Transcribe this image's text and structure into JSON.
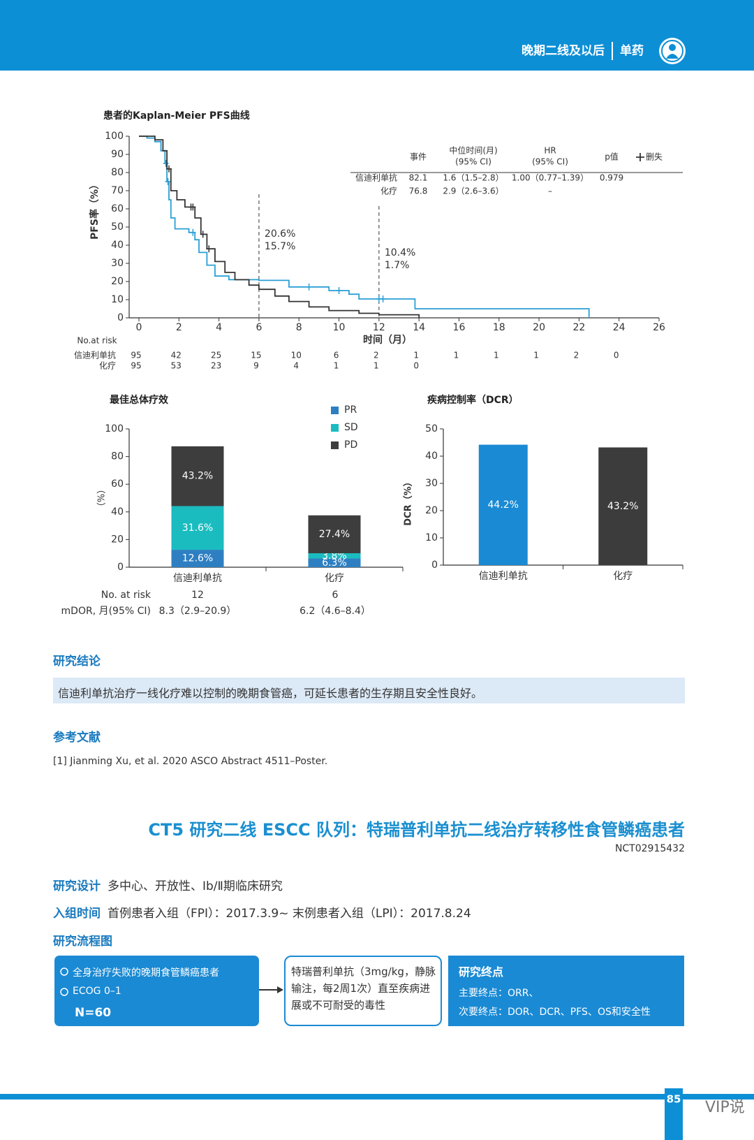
{
  "header": {
    "section": "晚期二线及以后",
    "subsection": "单药"
  },
  "km_chart": {
    "type": "line",
    "title": "患者的Kaplan-Meier PFS曲线",
    "y_label": "PFS率（%）",
    "x_label": "时间（月）",
    "xlim": [
      0,
      26
    ],
    "xticks": [
      0,
      2,
      4,
      6,
      8,
      10,
      12,
      14,
      16,
      18,
      20,
      22,
      24,
      26
    ],
    "ylim": [
      0,
      100
    ],
    "yticks": [
      0,
      10,
      20,
      30,
      40,
      50,
      60,
      70,
      80,
      90,
      100
    ],
    "series": [
      {
        "name": "信迪利单抗",
        "color": "#2a9fd6",
        "x": [
          0,
          0.4,
          0.4,
          0.8,
          0.8,
          1.1,
          1.1,
          1.3,
          1.3,
          1.4,
          1.4,
          1.5,
          1.5,
          1.6,
          1.6,
          1.8,
          1.8,
          2.5,
          2.5,
          2.8,
          2.8,
          3.0,
          3.0,
          3.4,
          3.4,
          3.8,
          3.8,
          4.5,
          4.5,
          6,
          6,
          7.5,
          7.5,
          9.5,
          9.5,
          10.5,
          10.5,
          11,
          11,
          13.8,
          13.8,
          22.5,
          22.5
        ],
        "values": [
          100,
          100,
          99,
          99,
          97,
          97,
          92,
          92,
          85,
          85,
          75,
          75,
          65,
          65,
          55,
          55,
          49,
          49,
          47,
          47,
          43,
          43,
          36,
          36,
          29,
          29,
          23,
          23,
          21,
          21,
          20.6,
          20.6,
          17,
          17,
          15,
          15,
          13,
          13,
          10.4,
          10.4,
          5,
          5,
          0
        ],
        "censor_x": [
          1.35,
          1.45,
          2.7,
          8.5,
          10,
          12,
          12.2
        ],
        "censor_values": [
          85,
          75,
          47,
          17,
          15,
          10.4,
          10.4
        ],
        "at_risk": [
          95,
          42,
          25,
          15,
          10,
          6,
          2,
          1,
          1,
          1,
          1,
          2,
          0
        ]
      },
      {
        "name": "化疗",
        "color": "#333333",
        "x": [
          0,
          0.8,
          0.8,
          1.2,
          1.2,
          1.4,
          1.4,
          1.6,
          1.6,
          1.9,
          1.9,
          2.3,
          2.3,
          2.8,
          2.8,
          3.1,
          3.1,
          3.4,
          3.4,
          3.8,
          3.8,
          4.3,
          4.3,
          4.8,
          4.8,
          5.5,
          5.5,
          6,
          6,
          6.8,
          6.8,
          7.5,
          7.5,
          8.5,
          8.5,
          9.5,
          9.5,
          11,
          11,
          12,
          12,
          14,
          14
        ],
        "values": [
          100,
          100,
          98,
          98,
          92,
          92,
          82,
          82,
          70,
          70,
          65,
          65,
          61,
          61,
          55,
          55,
          46,
          46,
          38,
          38,
          31,
          31,
          25,
          25,
          21,
          21,
          18,
          18,
          15.7,
          15.7,
          12,
          12,
          9,
          9,
          6,
          6,
          4,
          4,
          2.5,
          2.5,
          1.7,
          1.7,
          0
        ],
        "censor_x": [
          1.5,
          2.6,
          2.7,
          3.2,
          3.5
        ],
        "censor_values": [
          82,
          61,
          61,
          46,
          38
        ],
        "at_risk": [
          95,
          53,
          23,
          9,
          4,
          1,
          1,
          0
        ]
      }
    ],
    "reference_lines": [
      {
        "x": 6,
        "labels": [
          "20.6%",
          "15.7%"
        ]
      },
      {
        "x": 12,
        "labels": [
          "10.4%",
          "1.7%"
        ]
      }
    ],
    "summary_table": {
      "headers": [
        [
          "事件"
        ],
        [
          "中位时间(月)",
          "(95% CI)"
        ],
        [
          "HR",
          "(95% CI)"
        ],
        [
          "p值"
        ]
      ],
      "censor_legend": "删失",
      "rows": [
        [
          "82.1",
          "1.6（1.5–2.8）",
          "1.00（0.77–1.39）",
          "0.979"
        ],
        [
          "76.8",
          "2.9（2.6–3.6）",
          "–"
        ]
      ]
    },
    "risk_label": "No.at risk"
  },
  "response_chart": {
    "type": "bar",
    "stacked": true,
    "title": "最佳总体疗效",
    "y_label": "（%）",
    "categories": [
      "信迪利单抗",
      "化疗"
    ],
    "ylim": [
      0,
      100
    ],
    "yticks": [
      0,
      20,
      40,
      60,
      80,
      100
    ],
    "series": [
      {
        "name": "PR",
        "color": "#2e7fc2",
        "values": [
          12.6,
          6.3
        ],
        "value_labels": [
          "12.6%",
          "6.3%"
        ]
      },
      {
        "name": "SD",
        "color": "#1bbcc0",
        "values": [
          31.6,
          3.8
        ],
        "value_labels": [
          "31.6%",
          "3.8%"
        ]
      },
      {
        "name": "PD",
        "color": "#3d3d3d",
        "values": [
          43.2,
          27.4
        ],
        "value_labels": [
          "43.2%",
          "27.4%"
        ]
      }
    ],
    "rows": [
      {
        "label": "No. at risk",
        "values": [
          12,
          6
        ]
      },
      {
        "label": "mDOR, 月(95% CI)",
        "values": [
          "8.3（2.9–20.9）",
          "6.2（4.6–8.4）"
        ]
      }
    ]
  },
  "dcr_chart": {
    "type": "bar",
    "title": "疾病控制率（DCR）",
    "y_label": "DCR（%）",
    "categories": [
      "信迪利单抗",
      "化疗"
    ],
    "values": [
      44.2,
      43.2
    ],
    "value_labels": [
      "44.2%",
      "43.2%"
    ],
    "colors": [
      "#1a8ad4",
      "#3c3c3c"
    ],
    "ylim": [
      0,
      50
    ],
    "yticks": [
      0,
      10,
      20,
      30,
      40,
      50
    ]
  },
  "conclusion": {
    "heading": "研究结论",
    "text": "信迪利单抗治疗一线化疗难以控制的晚期食管癌，可延长患者的生存期且安全性良好。"
  },
  "references": {
    "heading": "参考文献",
    "items": [
      "[1] Jianming Xu, et al. 2020 ASCO Abstract 4511–Poster."
    ]
  },
  "study": {
    "title": "CT5 研究二线 ESCC 队列：特瑞普利单抗二线治疗转移性食管鳞癌患者",
    "id": "NCT02915432",
    "design_label": "研究设计",
    "design": "多中心、开放性、Ⅰb/Ⅱ期临床研究",
    "enrollment_label": "入组时间",
    "enrollment": "首例患者入组（FPI）：2017.3.9~ 末例患者入组（LPI）：2017.8.24",
    "flow_heading": "研究流程图",
    "flow": {
      "population": [
        "全身治疗失败的晚期食管鳞癌患者",
        "ECOG 0–1"
      ],
      "n": "N=60",
      "treatment": "特瑞普利单抗（3mg/kg，静脉输注，每2周1次）直至疾病进展或不可耐受的毒性",
      "endpoints_title": "研究终点",
      "endpoints": [
        "主要终点：ORR、",
        "次要终点：DOR、DCR、PFS、OS和安全性"
      ]
    }
  },
  "footer": {
    "page": "85",
    "watermark": "VIP说"
  }
}
